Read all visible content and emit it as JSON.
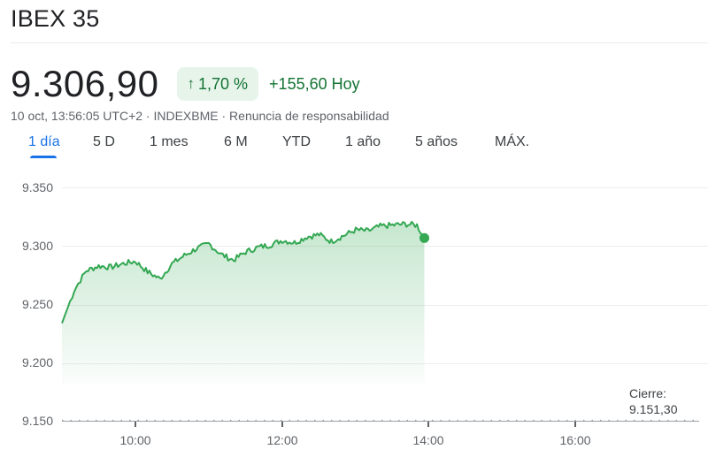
{
  "header": {
    "title": "IBEX 35"
  },
  "quote": {
    "price": "9.306,90",
    "change_arrow_icon": "arrow-up-icon",
    "change_percent": "1,70 %",
    "change_abs": "+155,60 Hoy",
    "meta": "10 oct, 13:56:05 UTC+2 · INDEXBME · Renuncia de responsabilidad",
    "colors": {
      "positive": "#137333",
      "positive_bg": "#e6f4ea",
      "line": "#34a853",
      "accent": "#1a73e8"
    }
  },
  "tabs": [
    {
      "label": "1 día",
      "active": true
    },
    {
      "label": "5 D",
      "active": false
    },
    {
      "label": "1 mes",
      "active": false
    },
    {
      "label": "6 M",
      "active": false
    },
    {
      "label": "YTD",
      "active": false
    },
    {
      "label": "1 año",
      "active": false
    },
    {
      "label": "5 años",
      "active": false
    },
    {
      "label": "MÁX.",
      "active": false
    }
  ],
  "chart": {
    "close_label": "Cierre:",
    "close_value": "9.151,30"
  },
  "chart_data": {
    "type": "area",
    "title": "IBEX 35 — 1 día",
    "xlabel": "",
    "ylabel": "",
    "y_ticks": [
      "9.350",
      "9.300",
      "9.250",
      "9.200",
      "9.150"
    ],
    "x_ticks": [
      "10:00",
      "12:00",
      "14:00",
      "16:00"
    ],
    "ylim": [
      9150,
      9350
    ],
    "xlim": [
      "09:00",
      "17:35"
    ],
    "grid": true,
    "legend": null,
    "previous_close": 9151.3,
    "last_value": 9306.9,
    "last_time": "13:56",
    "series": [
      {
        "name": "IBEX 35",
        "x": [
          "09:00",
          "09:05",
          "09:10",
          "09:15",
          "09:20",
          "09:30",
          "09:40",
          "09:50",
          "10:00",
          "10:10",
          "10:20",
          "10:30",
          "10:40",
          "10:50",
          "11:00",
          "11:10",
          "11:20",
          "11:30",
          "11:40",
          "11:50",
          "12:00",
          "12:10",
          "12:20",
          "12:30",
          "12:40",
          "12:50",
          "13:00",
          "13:10",
          "13:20",
          "13:30",
          "13:40",
          "13:50",
          "13:56"
        ],
        "values": [
          9234,
          9248,
          9262,
          9271,
          9279,
          9283,
          9282,
          9285,
          9287,
          9278,
          9272,
          9285,
          9292,
          9298,
          9302,
          9293,
          9288,
          9295,
          9299,
          9301,
          9305,
          9303,
          9308,
          9310,
          9304,
          9309,
          9314,
          9313,
          9317,
          9318,
          9319,
          9318,
          9307
        ]
      }
    ]
  }
}
